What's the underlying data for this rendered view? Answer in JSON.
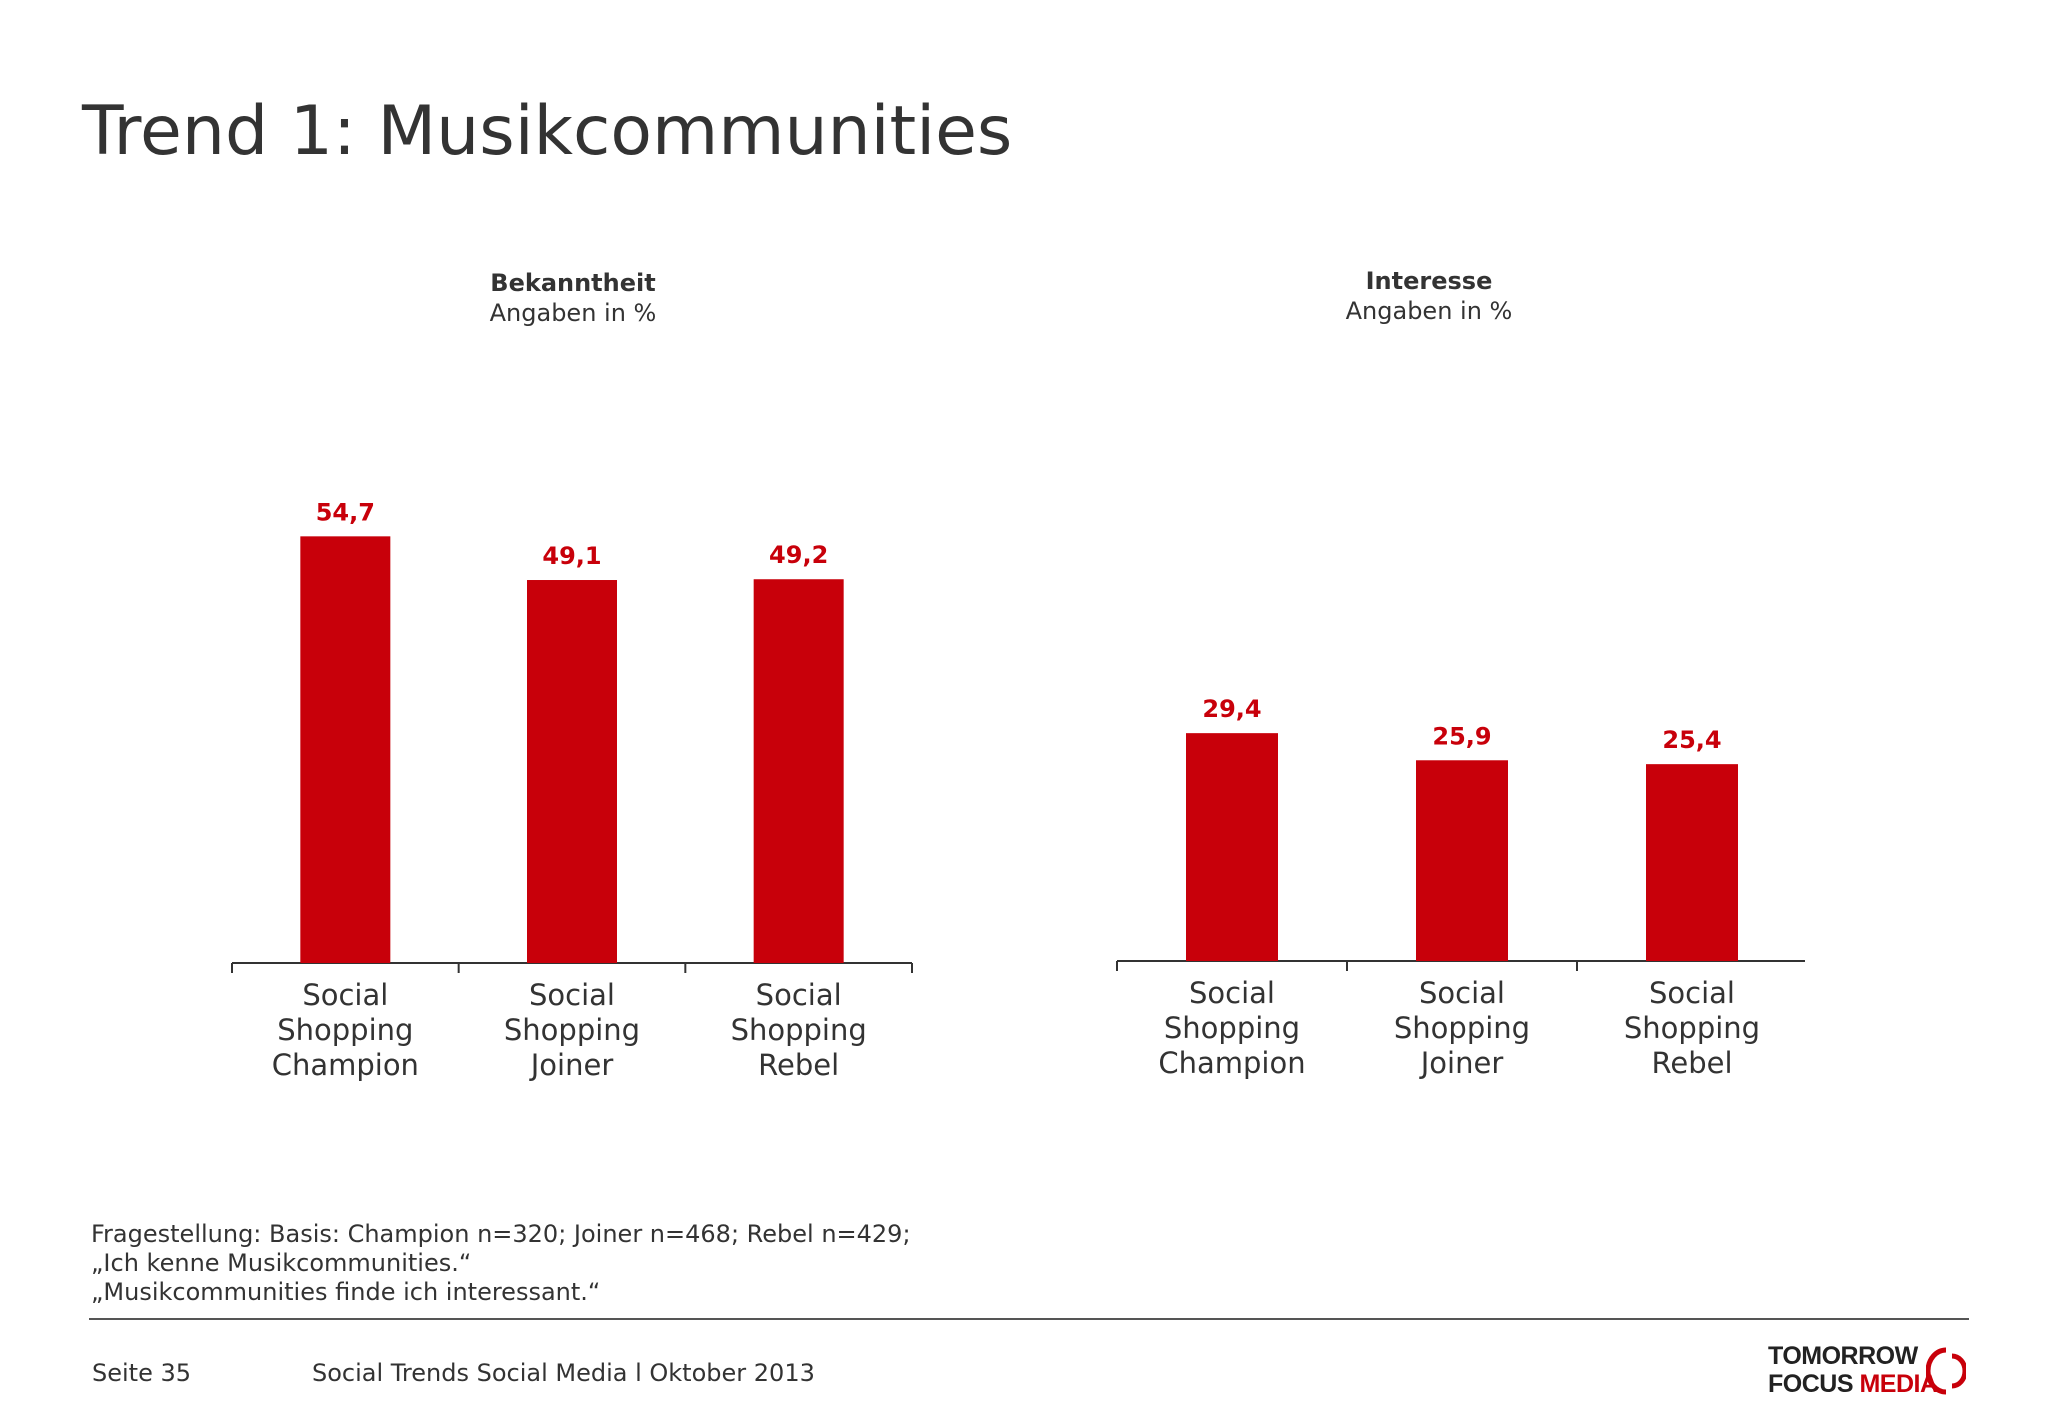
{
  "title": "Trend 1: Musikcommunities",
  "chart_data": [
    {
      "type": "bar",
      "title": "Bekanntheit",
      "subtitle": "Angaben in %",
      "categories": [
        "Social Shopping Champion",
        "Social Shopping Joiner",
        "Social Shopping Rebel"
      ],
      "values": [
        54.7,
        49.1,
        49.2
      ],
      "value_labels": [
        "54,7",
        "49,1",
        "49,2"
      ],
      "ylim": [
        0,
        60
      ],
      "bar_color": "#c8000a",
      "grid": false,
      "legend": "none"
    },
    {
      "type": "bar",
      "title": "Interesse",
      "subtitle": "Angaben in %",
      "categories": [
        "Social Shopping Champion",
        "Social Shopping Joiner",
        "Social Shopping Rebel"
      ],
      "values": [
        29.4,
        25.9,
        25.4
      ],
      "value_labels": [
        "29,4",
        "25,9",
        "25,4"
      ],
      "ylim": [
        0,
        60
      ],
      "bar_color": "#c8000a",
      "grid": false,
      "legend": "none"
    }
  ],
  "footnote": {
    "line1": "Fragestellung:  Basis: Champion n=320; Joiner n=468; Rebel n=429;",
    "line2": "„Ich kenne Musikcommunities.“",
    "line3": "„Musikcommunities finde ich interessant.“"
  },
  "footer": {
    "page": "Seite 35",
    "doc_title": "Social Trends Social Media l Oktober 2013"
  },
  "logo": {
    "line1": "TOMORROW",
    "line2_a": "FOCUS",
    "line2_b": "MEDIA",
    "accent_color": "#c8000a"
  }
}
